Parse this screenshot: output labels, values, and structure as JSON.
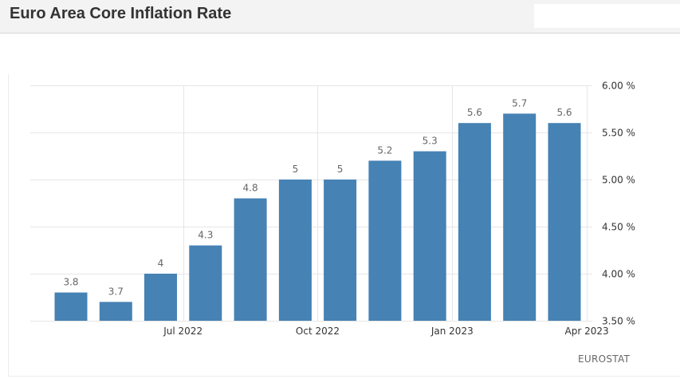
{
  "header": {
    "title": "Euro Area Core Inflation Rate"
  },
  "source": "EUROSTAT",
  "colors": {
    "bar": "#4682b4",
    "grid": "#e6e6e6"
  },
  "chart_data": {
    "type": "bar",
    "title": "Euro Area Core Inflation Rate",
    "categories": [
      "May 2022",
      "Jun 2022",
      "Jul 2022",
      "Aug 2022",
      "Sep 2022",
      "Oct 2022",
      "Nov 2022",
      "Dec 2022",
      "Jan 2023",
      "Feb 2023",
      "Mar 2023",
      "Apr 2023"
    ],
    "values": [
      3.8,
      3.7,
      4,
      4.3,
      4.8,
      5,
      5,
      5.2,
      5.3,
      5.6,
      5.7,
      5.6
    ],
    "value_labels": [
      "3.8",
      "3.7",
      "4",
      "4.3",
      "4.8",
      "5",
      "5",
      "5.2",
      "5.3",
      "5.6",
      "5.7",
      "5.6"
    ],
    "x_tick_labels": [
      {
        "category_index": 2,
        "label": "Jul 2022"
      },
      {
        "category_index": 5,
        "label": "Oct 2022"
      },
      {
        "category_index": 8,
        "label": "Jan 2023"
      },
      {
        "category_index": 11,
        "label": "Apr 2023"
      }
    ],
    "y_ticks": [
      3.5,
      4.0,
      4.5,
      5.0,
      5.5,
      6.0
    ],
    "y_tick_labels": [
      "3.50 %",
      "4.00 %",
      "4.50 %",
      "5.00 %",
      "5.50 %",
      "6.00 %"
    ],
    "ylim": [
      3.5,
      6.0
    ],
    "y_axis_side": "right",
    "grid": true,
    "xlabel": "",
    "ylabel": ""
  }
}
